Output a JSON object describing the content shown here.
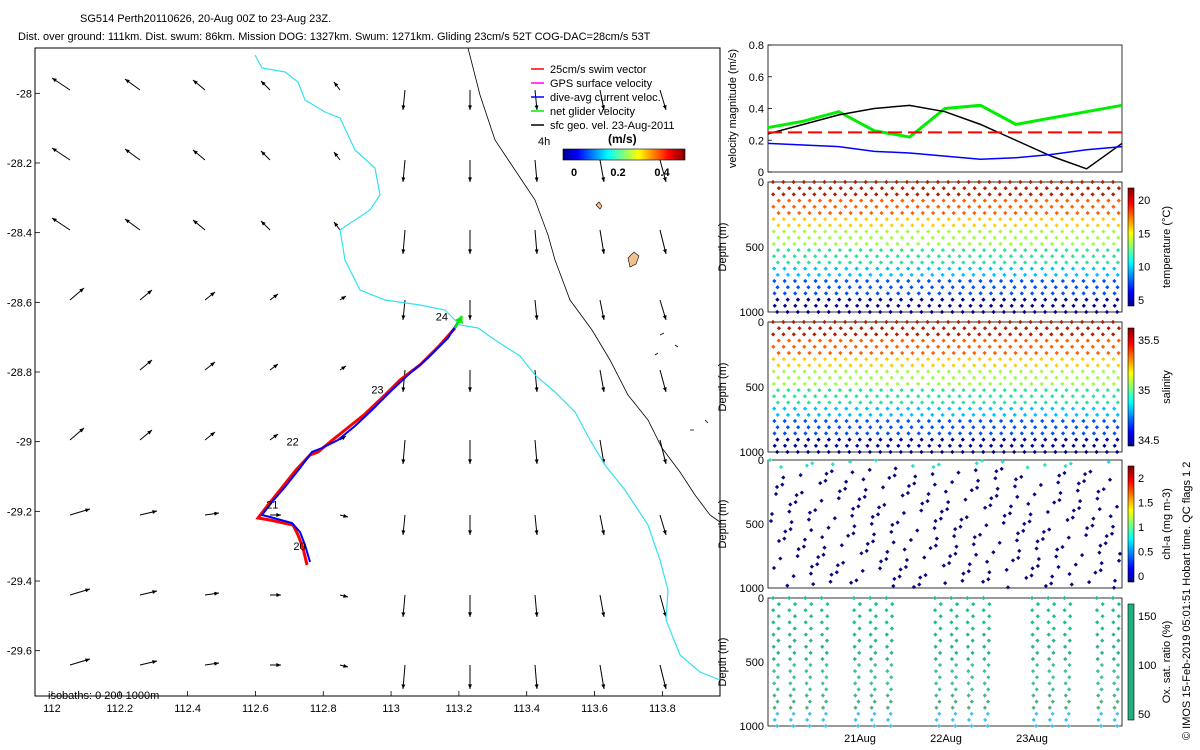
{
  "header": {
    "title": "SG514 Perth20110626, 20-Aug 00Z to 23-Aug 23Z.",
    "subtitle": "Dist. over ground: 111km. Dist. swum: 86km. Mission DOG: 1327km. Swum: 1271km. Gliding 23cm/s 52T COG-DAC=28cm/s 53T"
  },
  "copyright": "© IMOS 15-Feb-2019 05:01:51 Hobart time. QC flags 1  2",
  "colors": {
    "coast": "#33e0f0",
    "swim_vector": "#ff0000",
    "gps_velocity": "#ff00ff",
    "current_vector": "#0000ff",
    "net_velocity": "#00ee00",
    "geo_vector": "#000000"
  },
  "map": {
    "xticks": [
      "112",
      "112.2",
      "112.4",
      "112.6",
      "112.8",
      "113",
      "113.2",
      "113.4",
      "113.6",
      "113.8"
    ],
    "xtick_values": [
      112,
      112.2,
      112.4,
      112.6,
      112.8,
      113,
      113.2,
      113.4,
      113.6,
      113.8
    ],
    "yticks": [
      "-28",
      "-28.2",
      "-28.4",
      "-28.6",
      "-28.8",
      "-29",
      "-29.2",
      "-29.4",
      "-29.6"
    ],
    "ytick_values": [
      -28,
      -28.2,
      -28.4,
      -28.6,
      -28.8,
      -29,
      -29.2,
      -29.4,
      -29.6
    ],
    "xlim": [
      111.95,
      113.97
    ],
    "ylim": [
      -29.73,
      -27.87
    ],
    "legend": [
      {
        "label": "25cm/s swim vector",
        "color": "#ff0000"
      },
      {
        "label": "GPS surface velocity",
        "color": "#ff00ff"
      },
      {
        "label": "dive-avg current veloc.",
        "color": "#0000ff"
      },
      {
        "label": "net glider velocity",
        "color": "#00ee00"
      },
      {
        "label": "sfc geo. vel. 23-Aug-2011",
        "color": "#000000"
      }
    ],
    "colorbar_title": "(m/s)",
    "colorbar_hour": "4h",
    "colorbar_ticks": [
      "0",
      "0.2",
      "0.4"
    ],
    "isobath_note": "isobaths: 0   200  1000m",
    "track_day_labels": [
      {
        "label": "20",
        "lon": 112.7,
        "lat": -29.3
      },
      {
        "label": "21",
        "lon": 112.62,
        "lat": -29.18
      },
      {
        "label": "22",
        "lon": 112.68,
        "lat": -29.0
      },
      {
        "label": "23",
        "lon": 112.93,
        "lat": -28.85
      },
      {
        "label": "24",
        "lon": 113.12,
        "lat": -28.64
      }
    ]
  },
  "chart_data": [
    {
      "type": "line",
      "title": "",
      "ylabel": "velocity magnitude (m/s)",
      "ylim": [
        0,
        0.8
      ],
      "yticks": [
        "0",
        "0.2",
        "0.4",
        "0.6",
        "0.8"
      ],
      "x": [
        0,
        0.1,
        0.2,
        0.3,
        0.4,
        0.5,
        0.6,
        0.7,
        0.8,
        0.9,
        1.0
      ],
      "series": [
        {
          "color": "#00ee00",
          "values": [
            0.28,
            0.32,
            0.38,
            0.26,
            0.22,
            0.4,
            0.42,
            0.3,
            0.34,
            0.38,
            0.42
          ]
        },
        {
          "color": "#000000",
          "values": [
            0.24,
            0.3,
            0.36,
            0.4,
            0.42,
            0.38,
            0.3,
            0.2,
            0.1,
            0.02,
            0.18
          ]
        },
        {
          "color": "#0000ff",
          "values": [
            0.18,
            0.17,
            0.16,
            0.13,
            0.12,
            0.1,
            0.08,
            0.09,
            0.11,
            0.14,
            0.16
          ]
        },
        {
          "color": "#ff0000",
          "values": [
            0.25,
            0.25,
            0.25,
            0.25,
            0.25,
            0.25,
            0.25,
            0.25,
            0.25,
            0.25,
            0.25
          ]
        }
      ]
    },
    {
      "type": "scatter",
      "ylabel": "Depth (m)",
      "cbar_label": "temperature (°C)",
      "yticks": [
        "0",
        "500",
        "1000"
      ],
      "cbar_ticks": [
        "5",
        "10",
        "15",
        "20"
      ]
    },
    {
      "type": "scatter",
      "ylabel": "Depth (m)",
      "cbar_label": "salinity",
      "yticks": [
        "0",
        "500",
        "1000"
      ],
      "cbar_ticks": [
        "34.5",
        "35",
        "35.5"
      ]
    },
    {
      "type": "scatter",
      "ylabel": "Depth (m)",
      "cbar_label": "chl-a (mg m-3)",
      "yticks": [
        "0",
        "500",
        "1000"
      ],
      "cbar_ticks": [
        "0",
        "0.5",
        "1",
        "1.5",
        "2"
      ]
    },
    {
      "type": "scatter",
      "ylabel": "Depth (m)",
      "cbar_label": "Ox. sat. ratio (%)",
      "yticks": [
        "0",
        "500",
        "1000"
      ],
      "cbar_ticks": [
        "50",
        "100",
        "150"
      ],
      "xticks": [
        "21Aug",
        "22Aug",
        "23Aug"
      ]
    }
  ]
}
